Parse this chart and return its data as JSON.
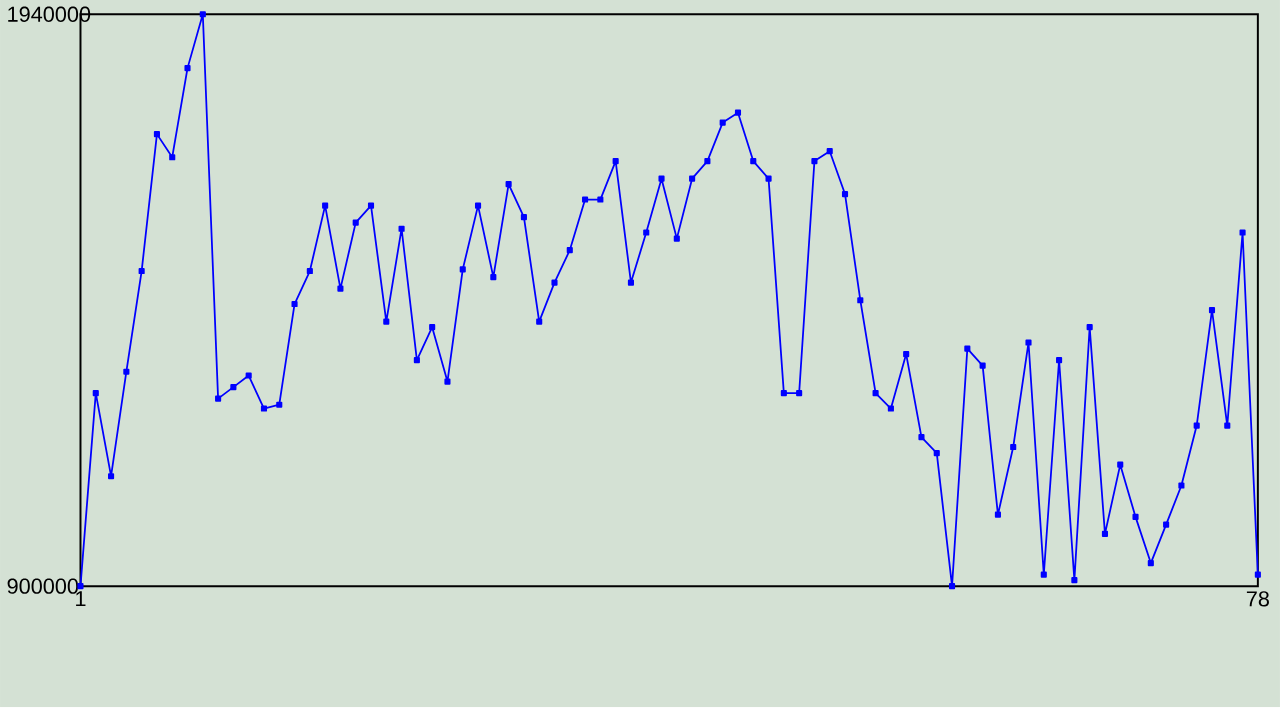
{
  "chart_data": {
    "type": "line",
    "x": [
      1,
      2,
      3,
      4,
      5,
      6,
      7,
      8,
      9,
      10,
      11,
      12,
      13,
      14,
      15,
      16,
      17,
      18,
      19,
      20,
      21,
      22,
      23,
      24,
      25,
      26,
      27,
      28,
      29,
      30,
      31,
      32,
      33,
      34,
      35,
      36,
      37,
      38,
      39,
      40,
      41,
      42,
      43,
      44,
      45,
      46,
      47,
      48,
      49,
      50,
      51,
      52,
      53,
      54,
      55,
      56,
      57,
      58,
      59,
      60,
      61,
      62,
      63,
      64,
      65,
      66,
      67,
      68,
      69,
      70,
      71,
      72,
      73,
      74,
      75,
      76,
      77,
      78
    ],
    "series": [
      {
        "color": "#0000ff",
        "values": [
          900000,
          1251000,
          1100000,
          1290000,
          1473000,
          1722000,
          1680000,
          1842000,
          1940000,
          1241000,
          1262000,
          1283000,
          1223000,
          1230000,
          1413000,
          1473000,
          1592000,
          1441000,
          1561000,
          1592000,
          1381000,
          1550000,
          1311000,
          1371000,
          1272000,
          1476000,
          1592000,
          1462000,
          1631000,
          1571000,
          1381000,
          1452000,
          1511000,
          1603000,
          1603000,
          1673000,
          1452000,
          1543000,
          1641000,
          1532000,
          1641000,
          1673000,
          1743000,
          1761000,
          1673000,
          1641000,
          1251000,
          1251000,
          1673000,
          1691000,
          1613000,
          1420000,
          1251000,
          1223000,
          1322000,
          1171000,
          1142000,
          900000,
          1332000,
          1301000,
          1030000,
          1153000,
          1343000,
          921000,
          1311000,
          911000,
          1371000,
          995000,
          1121000,
          1026000,
          942000,
          1012000,
          1083000,
          1192000,
          1402000,
          1192000,
          1543000,
          921000
        ]
      }
    ],
    "xlim": [
      1,
      78
    ],
    "xticks": [
      1,
      78
    ],
    "ylim": [
      900000,
      1940000
    ],
    "yticks": [
      900000,
      1940000
    ],
    "marker": "square",
    "line_style": "solid"
  }
}
